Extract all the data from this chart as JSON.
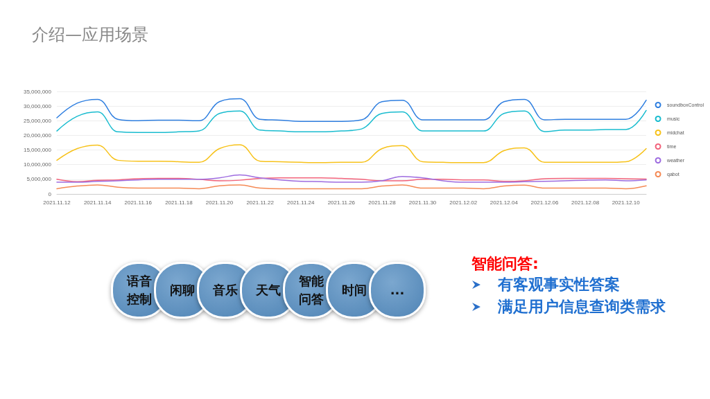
{
  "chart_data": {
    "type": "line",
    "title": "介绍—应用场景",
    "categories": [
      "2021.11.12",
      null,
      "2021.11.14",
      null,
      "2021.11.16",
      null,
      "2021.11.18",
      null,
      "2021.11.20",
      null,
      "2021.11.22",
      null,
      "2021.11.24",
      null,
      "2021.11.26",
      null,
      "2021.11.28",
      null,
      "2021.11.30",
      null,
      "2021.12.02",
      null,
      "2021.12.04",
      null,
      "2021.12.06",
      null,
      "2021.12.08",
      null,
      "2021.12.10",
      null
    ],
    "series": [
      {
        "name": "soundboxControl",
        "color": "#2f7fe0",
        "values": [
          26000000,
          31000000,
          32300000,
          25500000,
          25000000,
          25200000,
          25200000,
          25000000,
          31500000,
          32500000,
          25500000,
          25200000,
          24800000,
          24800000,
          24800000,
          25300000,
          31500000,
          32000000,
          25300000,
          25300000,
          25300000,
          25300000,
          31500000,
          32300000,
          25300000,
          25500000,
          25500000,
          25500000,
          25500000,
          32000000
        ]
      },
      {
        "name": "music",
        "color": "#19bccf",
        "values": [
          21500000,
          26500000,
          28000000,
          21200000,
          21000000,
          21000000,
          21200000,
          21500000,
          27500000,
          28300000,
          21800000,
          21500000,
          21200000,
          21200000,
          21500000,
          22200000,
          27500000,
          28000000,
          21500000,
          21500000,
          21500000,
          21500000,
          27500000,
          28300000,
          21300000,
          21800000,
          21800000,
          22000000,
          22000000,
          28500000
        ]
      },
      {
        "name": "midchat",
        "color": "#f7c21a",
        "values": [
          11500000,
          15500000,
          16700000,
          11500000,
          11200000,
          11200000,
          11000000,
          10800000,
          15500000,
          16800000,
          11200000,
          11000000,
          10800000,
          10700000,
          10800000,
          10800000,
          15500000,
          16500000,
          11000000,
          10800000,
          10700000,
          10700000,
          14800000,
          15700000,
          10800000,
          10800000,
          10800000,
          10800000,
          11000000,
          15500000
        ]
      },
      {
        "name": "time",
        "color": "#f2637b",
        "values": [
          5000000,
          4200000,
          4700000,
          4800000,
          5200000,
          5300000,
          5300000,
          5000000,
          4500000,
          4700000,
          5300000,
          5500000,
          5500000,
          5500000,
          5300000,
          5000000,
          4500000,
          4500000,
          5000000,
          5000000,
          4800000,
          4800000,
          4300000,
          4500000,
          5200000,
          5300000,
          5300000,
          5300000,
          5200000,
          5100000
        ]
      },
      {
        "name": "weather",
        "color": "#9e6ce0",
        "values": [
          4000000,
          4000000,
          4300000,
          4500000,
          4800000,
          5000000,
          5000000,
          5000000,
          5500000,
          6500000,
          5500000,
          4800000,
          4300000,
          4200000,
          4000000,
          4000000,
          4500000,
          6000000,
          5500000,
          4500000,
          4000000,
          4000000,
          4000000,
          4200000,
          4300000,
          4500000,
          4700000,
          4800000,
          4500000,
          4800000
        ]
      },
      {
        "name": "qabot",
        "color": "#f58a55",
        "values": [
          1800000,
          2700000,
          3100000,
          2300000,
          2000000,
          2000000,
          2000000,
          1800000,
          2800000,
          3100000,
          2000000,
          1800000,
          1800000,
          1800000,
          1800000,
          1800000,
          2700000,
          3100000,
          2000000,
          2000000,
          2000000,
          1800000,
          2700000,
          3000000,
          2000000,
          2000000,
          2000000,
          2000000,
          1800000,
          2800000
        ]
      }
    ],
    "ylim": [
      0,
      35000000
    ],
    "yticks": [
      0,
      {
        "value": 5000000,
        "label": "5,000,000"
      },
      {
        "value": 10000000,
        "label": "10,000,000"
      },
      {
        "value": 15000000,
        "label": "15,000,000"
      },
      {
        "value": 20000000,
        "label": "20,000,000"
      },
      {
        "value": 25000000,
        "label": "25,000,000"
      },
      {
        "value": 30000000,
        "label": "30,000,000"
      },
      {
        "value": 35000000,
        "label": "35,000,000"
      }
    ],
    "grid": "y",
    "legend": "right",
    "marker": "none",
    "line_style": "solid",
    "annotations": [
      "语音控制",
      "闲聊",
      "音乐",
      "天气",
      "智能问答",
      "时间",
      "...",
      "智能问答:",
      "有客观事实性答案",
      "满足用户信息查询类需求"
    ]
  }
}
